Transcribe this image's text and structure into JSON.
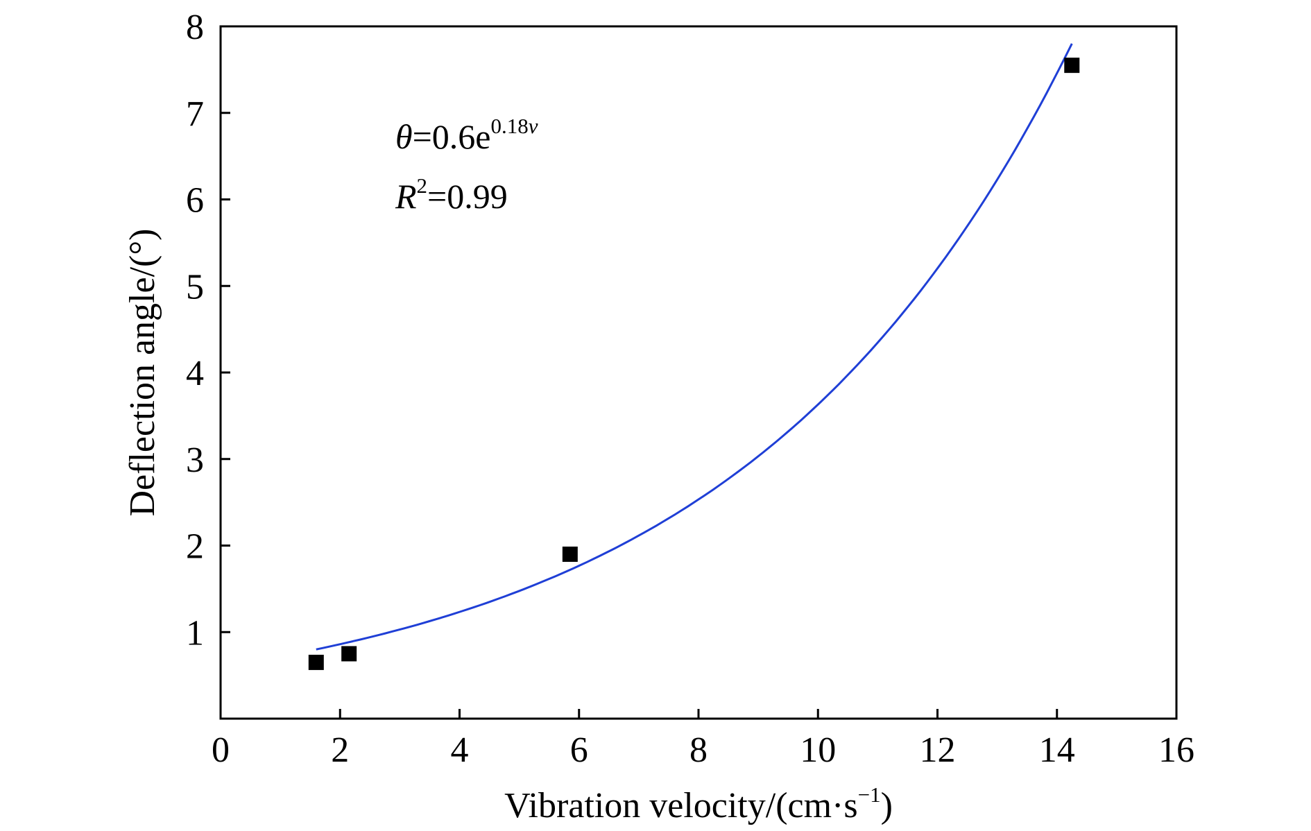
{
  "chart_data": {
    "type": "scatter",
    "xlabel": "Vibration velocity/(cm·s",
    "xlabel_sup": "−1",
    "xlabel_close": ")",
    "ylabel": "Deflection angle/(°)",
    "xlim": [
      0,
      16
    ],
    "ylim": [
      0,
      8
    ],
    "xticks": [
      0,
      2,
      4,
      6,
      8,
      10,
      12,
      14,
      16
    ],
    "yticks": [
      1,
      2,
      3,
      4,
      5,
      6,
      7,
      8
    ],
    "grid": false,
    "series": [
      {
        "type": "scatter",
        "marker": "square",
        "color": "#000000",
        "x": [
          1.6,
          2.15,
          5.85,
          14.25
        ],
        "y": [
          0.65,
          0.75,
          1.9,
          7.55
        ]
      },
      {
        "type": "fit",
        "color": "#1f3fd6",
        "a": 0.6,
        "b": 0.18,
        "x_range": [
          1.6,
          14.25
        ]
      }
    ],
    "annotations": {
      "eq_theta": "θ",
      "eq_body": "=0.6e",
      "eq_exp": "0.18",
      "eq_var": "v",
      "r2_R": "R",
      "r2_sup": "2",
      "r2_body": "=0.99"
    }
  }
}
